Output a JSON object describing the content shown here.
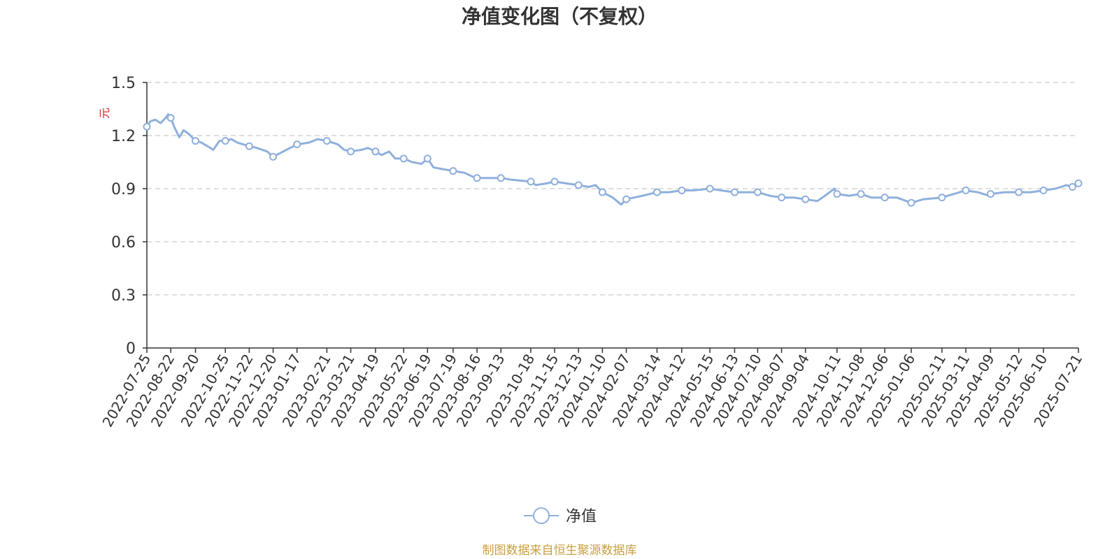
{
  "chart_data": {
    "type": "line",
    "title": "净值变化图（不复权）",
    "ylabel": "元",
    "ylim": [
      0,
      1.5
    ],
    "yticks": [
      "0",
      "0.3",
      "0.6",
      "0.9",
      "1.2",
      "1.5"
    ],
    "grid": "y-dashed",
    "x_ticks": [
      "2022-07-25",
      "2022-08-22",
      "2022-09-20",
      "2022-10-25",
      "2022-11-22",
      "2022-12-20",
      "2023-01-17",
      "2023-02-21",
      "2023-03-21",
      "2023-04-19",
      "2023-05-22",
      "2023-06-19",
      "2023-07-19",
      "2023-08-16",
      "2023-09-13",
      "2023-10-18",
      "2023-11-15",
      "2023-12-13",
      "2024-01-10",
      "2024-02-07",
      "2024-03-14",
      "2024-04-12",
      "2024-05-15",
      "2024-06-13",
      "2024-07-10",
      "2024-08-07",
      "2024-09-04",
      "2024-10-11",
      "2024-11-08",
      "2024-12-06",
      "2025-01-06",
      "2025-02-11",
      "2025-03-11",
      "2025-04-09",
      "2025-05-12",
      "2025-06-10",
      "2025-07-21"
    ],
    "series": [
      {
        "name": "净值",
        "color": "#8fb0dc",
        "points": [
          [
            "2022-07-25",
            1.25
          ],
          [
            "2022-07-29",
            1.28
          ],
          [
            "2022-08-04",
            1.29
          ],
          [
            "2022-08-10",
            1.27
          ],
          [
            "2022-08-16",
            1.3
          ],
          [
            "2022-08-19",
            1.32
          ],
          [
            "2022-08-22",
            1.3
          ],
          [
            "2022-08-26",
            1.25
          ],
          [
            "2022-09-01",
            1.19
          ],
          [
            "2022-09-06",
            1.23
          ],
          [
            "2022-09-12",
            1.21
          ],
          [
            "2022-09-20",
            1.17
          ],
          [
            "2022-09-27",
            1.16
          ],
          [
            "2022-10-11",
            1.12
          ],
          [
            "2022-10-18",
            1.17
          ],
          [
            "2022-10-25",
            1.17
          ],
          [
            "2022-11-01",
            1.18
          ],
          [
            "2022-11-08",
            1.16
          ],
          [
            "2022-11-22",
            1.14
          ],
          [
            "2022-12-01",
            1.13
          ],
          [
            "2022-12-13",
            1.11
          ],
          [
            "2022-12-20",
            1.08
          ],
          [
            "2022-12-28",
            1.1
          ],
          [
            "2023-01-09",
            1.13
          ],
          [
            "2023-01-17",
            1.15
          ],
          [
            "2023-01-31",
            1.16
          ],
          [
            "2023-02-10",
            1.18
          ],
          [
            "2023-02-21",
            1.17
          ],
          [
            "2023-03-06",
            1.15
          ],
          [
            "2023-03-13",
            1.12
          ],
          [
            "2023-03-21",
            1.11
          ],
          [
            "2023-04-03",
            1.12
          ],
          [
            "2023-04-10",
            1.13
          ],
          [
            "2023-04-19",
            1.11
          ],
          [
            "2023-04-26",
            1.09
          ],
          [
            "2023-05-05",
            1.11
          ],
          [
            "2023-05-12",
            1.07
          ],
          [
            "2023-05-22",
            1.07
          ],
          [
            "2023-06-01",
            1.05
          ],
          [
            "2023-06-12",
            1.04
          ],
          [
            "2023-06-19",
            1.07
          ],
          [
            "2023-06-26",
            1.02
          ],
          [
            "2023-07-07",
            1.01
          ],
          [
            "2023-07-19",
            1.0
          ],
          [
            "2023-08-01",
            0.99
          ],
          [
            "2023-08-10",
            0.97
          ],
          [
            "2023-08-16",
            0.96
          ],
          [
            "2023-08-28",
            0.96
          ],
          [
            "2023-09-06",
            0.96
          ],
          [
            "2023-09-13",
            0.96
          ],
          [
            "2023-09-26",
            0.95
          ],
          [
            "2023-10-18",
            0.94
          ],
          [
            "2023-10-24",
            0.92
          ],
          [
            "2023-11-06",
            0.93
          ],
          [
            "2023-11-15",
            0.94
          ],
          [
            "2023-11-28",
            0.93
          ],
          [
            "2023-12-13",
            0.92
          ],
          [
            "2023-12-25",
            0.91
          ],
          [
            "2024-01-02",
            0.92
          ],
          [
            "2024-01-10",
            0.88
          ],
          [
            "2024-01-22",
            0.85
          ],
          [
            "2024-02-01",
            0.81
          ],
          [
            "2024-02-07",
            0.84
          ],
          [
            "2024-02-26",
            0.86
          ],
          [
            "2024-03-14",
            0.88
          ],
          [
            "2024-03-28",
            0.88
          ],
          [
            "2024-04-12",
            0.89
          ],
          [
            "2024-04-26",
            0.89
          ],
          [
            "2024-05-15",
            0.9
          ],
          [
            "2024-05-28",
            0.89
          ],
          [
            "2024-06-13",
            0.88
          ],
          [
            "2024-06-26",
            0.88
          ],
          [
            "2024-07-10",
            0.88
          ],
          [
            "2024-07-24",
            0.86
          ],
          [
            "2024-08-07",
            0.85
          ],
          [
            "2024-08-21",
            0.85
          ],
          [
            "2024-09-04",
            0.84
          ],
          [
            "2024-09-18",
            0.83
          ],
          [
            "2024-09-27",
            0.86
          ],
          [
            "2024-10-08",
            0.9
          ],
          [
            "2024-10-11",
            0.87
          ],
          [
            "2024-10-25",
            0.86
          ],
          [
            "2024-11-08",
            0.87
          ],
          [
            "2024-11-20",
            0.85
          ],
          [
            "2024-12-06",
            0.85
          ],
          [
            "2024-12-20",
            0.85
          ],
          [
            "2025-01-06",
            0.82
          ],
          [
            "2025-01-20",
            0.84
          ],
          [
            "2025-02-11",
            0.85
          ],
          [
            "2025-02-25",
            0.87
          ],
          [
            "2025-03-11",
            0.89
          ],
          [
            "2025-03-25",
            0.88
          ],
          [
            "2025-04-07",
            0.86
          ],
          [
            "2025-04-09",
            0.87
          ],
          [
            "2025-04-25",
            0.88
          ],
          [
            "2025-05-12",
            0.88
          ],
          [
            "2025-05-26",
            0.88
          ],
          [
            "2025-06-10",
            0.89
          ],
          [
            "2025-06-24",
            0.9
          ],
          [
            "2025-07-07",
            0.92
          ],
          [
            "2025-07-14",
            0.91
          ],
          [
            "2025-07-21",
            0.93
          ]
        ],
        "marker_dates": [
          "2022-07-25",
          "2022-08-22",
          "2022-09-20",
          "2022-10-25",
          "2022-11-22",
          "2022-12-20",
          "2023-01-17",
          "2023-02-21",
          "2023-03-21",
          "2023-04-19",
          "2023-05-22",
          "2023-06-19",
          "2023-07-19",
          "2023-08-16",
          "2023-09-13",
          "2023-10-18",
          "2023-11-15",
          "2023-12-13",
          "2024-01-10",
          "2024-02-07",
          "2024-03-14",
          "2024-04-12",
          "2024-05-15",
          "2024-06-13",
          "2024-07-10",
          "2024-08-07",
          "2024-09-04",
          "2024-10-11",
          "2024-11-08",
          "2024-12-06",
          "2025-01-06",
          "2025-02-11",
          "2025-03-11",
          "2025-04-09",
          "2025-05-12",
          "2025-06-10",
          "2025-07-14",
          "2025-07-21"
        ]
      }
    ],
    "legend": {
      "position": "bottom-center",
      "label": "净值"
    },
    "colors": {
      "line": "#8fb0dc",
      "grid": "#cccccc",
      "axis": "#333333",
      "ylabel": "#e02020",
      "source": "#c8a040"
    }
  },
  "source_note": "制图数据来自恒生聚源数据库"
}
